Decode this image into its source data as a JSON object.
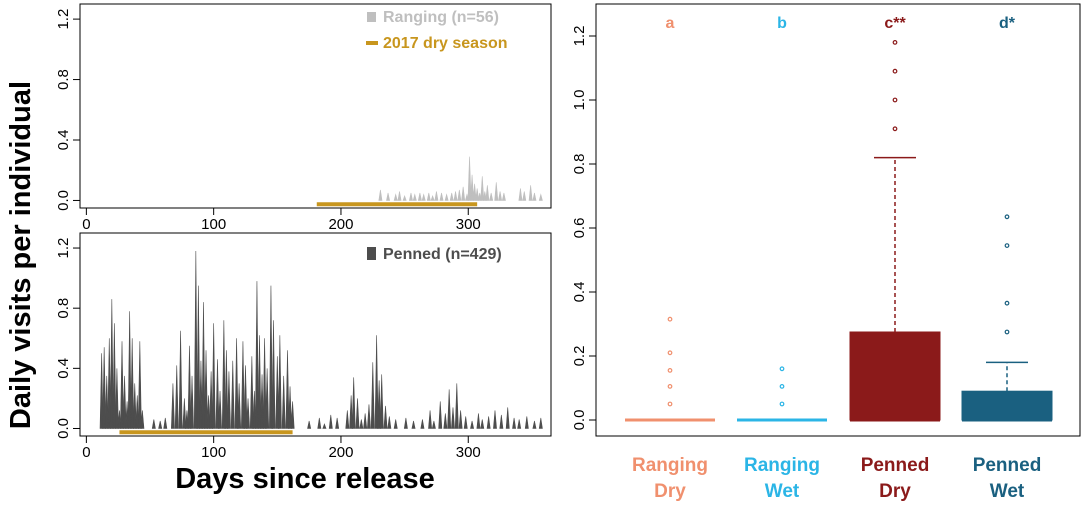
{
  "figure": {
    "shared_ylabel": "Daily visits per individual",
    "shared_xlabel": "Days since release"
  },
  "chart_data": [
    {
      "id": "ranging-timeseries",
      "type": "area",
      "title": "",
      "xlabel": "Days since release",
      "ylabel": "Daily visits per individual",
      "xlim": [
        -5,
        365
      ],
      "ylim": [
        -0.05,
        1.3
      ],
      "xticks": [
        0,
        100,
        200,
        300
      ],
      "yticks": [
        0.0,
        0.4,
        0.8,
        1.2
      ],
      "ytick_labels": [
        "0.0",
        "0.4",
        "0.8",
        "1.2"
      ],
      "series_name": "Ranging (n=56)",
      "color": "#bfbfbf",
      "dry_season": {
        "label": "2017 dry season",
        "start": 181,
        "end": 307,
        "color": "#c8961e"
      },
      "spikes": [
        [
          231,
          0.07
        ],
        [
          237,
          0.05
        ],
        [
          243,
          0.04
        ],
        [
          246,
          0.06
        ],
        [
          250,
          0.03
        ],
        [
          255,
          0.05
        ],
        [
          258,
          0.04
        ],
        [
          262,
          0.05
        ],
        [
          265,
          0.04
        ],
        [
          269,
          0.05
        ],
        [
          272,
          0.03
        ],
        [
          275,
          0.06
        ],
        [
          279,
          0.05
        ],
        [
          283,
          0.04
        ],
        [
          287,
          0.05
        ],
        [
          290,
          0.06
        ],
        [
          293,
          0.07
        ],
        [
          296,
          0.09
        ],
        [
          299,
          0.04
        ],
        [
          301,
          0.29
        ],
        [
          303,
          0.17
        ],
        [
          305,
          0.11
        ],
        [
          307,
          0.08
        ],
        [
          309,
          0.05
        ],
        [
          311,
          0.16
        ],
        [
          313,
          0.06
        ],
        [
          315,
          0.1
        ],
        [
          318,
          0.05
        ],
        [
          322,
          0.12
        ],
        [
          325,
          0.06
        ],
        [
          328,
          0.05
        ],
        [
          341,
          0.08
        ],
        [
          344,
          0.06
        ],
        [
          349,
          0.1
        ],
        [
          352,
          0.05
        ],
        [
          357,
          0.04
        ]
      ]
    },
    {
      "id": "penned-timeseries",
      "type": "area",
      "title": "",
      "xlabel": "Days since release",
      "ylabel": "Daily visits per individual",
      "xlim": [
        -5,
        365
      ],
      "ylim": [
        -0.05,
        1.3
      ],
      "xticks": [
        0,
        100,
        200,
        300
      ],
      "yticks": [
        0.0,
        0.4,
        0.8,
        1.2
      ],
      "ytick_labels": [
        "0.0",
        "0.4",
        "0.8",
        "1.2"
      ],
      "series_name": "Penned (n=429)",
      "color": "#4d4d4d",
      "dry_season": {
        "label": "2017 dry season",
        "start": 26,
        "end": 162,
        "color": "#c8961e"
      },
      "spikes": [
        [
          12,
          0.5
        ],
        [
          14,
          0.54
        ],
        [
          16,
          0.35
        ],
        [
          18,
          0.6
        ],
        [
          20,
          0.86
        ],
        [
          22,
          0.7
        ],
        [
          24,
          0.4
        ],
        [
          26,
          0.12
        ],
        [
          28,
          0.58
        ],
        [
          30,
          0.35
        ],
        [
          32,
          0.18
        ],
        [
          34,
          0.78
        ],
        [
          36,
          0.6
        ],
        [
          38,
          0.3
        ],
        [
          40,
          0.22
        ],
        [
          42,
          0.58
        ],
        [
          44,
          0.12
        ],
        [
          53,
          0.06
        ],
        [
          58,
          0.05
        ],
        [
          62,
          0.07
        ],
        [
          68,
          0.3
        ],
        [
          71,
          0.42
        ],
        [
          74,
          0.65
        ],
        [
          77,
          0.2
        ],
        [
          79,
          0.12
        ],
        [
          81,
          0.55
        ],
        [
          83,
          0.35
        ],
        [
          86,
          1.18
        ],
        [
          88,
          0.95
        ],
        [
          90,
          0.45
        ],
        [
          92,
          0.84
        ],
        [
          94,
          0.52
        ],
        [
          96,
          0.22
        ],
        [
          98,
          0.38
        ],
        [
          100,
          0.7
        ],
        [
          103,
          0.46
        ],
        [
          105,
          0.25
        ],
        [
          108,
          0.72
        ],
        [
          110,
          0.52
        ],
        [
          112,
          0.38
        ],
        [
          115,
          0.45
        ],
        [
          118,
          0.6
        ],
        [
          120,
          0.3
        ],
        [
          123,
          0.58
        ],
        [
          125,
          0.42
        ],
        [
          127,
          0.2
        ],
        [
          130,
          0.48
        ],
        [
          132,
          0.25
        ],
        [
          134,
          0.98
        ],
        [
          136,
          0.62
        ],
        [
          138,
          0.36
        ],
        [
          140,
          0.6
        ],
        [
          142,
          0.4
        ],
        [
          145,
          0.95
        ],
        [
          147,
          0.72
        ],
        [
          150,
          0.48
        ],
        [
          152,
          0.62
        ],
        [
          155,
          0.35
        ],
        [
          158,
          0.52
        ],
        [
          160,
          0.28
        ],
        [
          162,
          0.18
        ],
        [
          175,
          0.05
        ],
        [
          183,
          0.07
        ],
        [
          187,
          0.03
        ],
        [
          192,
          0.09
        ],
        [
          197,
          0.07
        ],
        [
          205,
          0.12
        ],
        [
          208,
          0.22
        ],
        [
          210,
          0.34
        ],
        [
          213,
          0.2
        ],
        [
          216,
          0.06
        ],
        [
          219,
          0.1
        ],
        [
          222,
          0.16
        ],
        [
          225,
          0.44
        ],
        [
          228,
          0.62
        ],
        [
          230,
          0.32
        ],
        [
          232,
          0.36
        ],
        [
          235,
          0.15
        ],
        [
          238,
          0.08
        ],
        [
          243,
          0.06
        ],
        [
          251,
          0.07
        ],
        [
          257,
          0.05
        ],
        [
          264,
          0.06
        ],
        [
          270,
          0.12
        ],
        [
          273,
          0.05
        ],
        [
          278,
          0.18
        ],
        [
          282,
          0.1
        ],
        [
          285,
          0.26
        ],
        [
          288,
          0.14
        ],
        [
          291,
          0.3
        ],
        [
          294,
          0.12
        ],
        [
          298,
          0.08
        ],
        [
          303,
          0.05
        ],
        [
          308,
          0.1
        ],
        [
          311,
          0.06
        ],
        [
          316,
          0.08
        ],
        [
          321,
          0.12
        ],
        [
          326,
          0.09
        ],
        [
          331,
          0.14
        ],
        [
          336,
          0.07
        ],
        [
          340,
          0.06
        ],
        [
          346,
          0.08
        ],
        [
          352,
          0.05
        ],
        [
          357,
          0.07
        ]
      ]
    },
    {
      "id": "boxplot",
      "type": "box",
      "title": "",
      "ylim": [
        -0.05,
        1.3
      ],
      "yticks": [
        0.0,
        0.2,
        0.4,
        0.6,
        0.8,
        1.0,
        1.2
      ],
      "ytick_labels": [
        "0.0",
        "0.2",
        "0.4",
        "0.6",
        "0.8",
        "1.0",
        "1.2"
      ],
      "groups": [
        {
          "label_line1": "Ranging",
          "label_line2": "Dry",
          "letter": "a",
          "color": "#f0906e",
          "q1": 0.0,
          "median": 0.0,
          "q3": 0.0,
          "whisker_low": 0.0,
          "whisker_high": 0.0,
          "outliers": [
            0.05,
            0.105,
            0.155,
            0.21,
            0.315
          ]
        },
        {
          "label_line1": "Ranging",
          "label_line2": "Wet",
          "letter": "b",
          "color": "#2bb5e6",
          "q1": 0.0,
          "median": 0.0,
          "q3": 0.0,
          "whisker_low": 0.0,
          "whisker_high": 0.0,
          "outliers": [
            0.05,
            0.105,
            0.16
          ]
        },
        {
          "label_line1": "Penned",
          "label_line2": "Dry",
          "letter": "c**",
          "color": "#8b1a1a",
          "q1": 0.0,
          "median": 0.0,
          "q3": 0.275,
          "whisker_low": 0.0,
          "whisker_high": 0.82,
          "outliers": [
            0.91,
            1.0,
            1.09,
            1.18
          ]
        },
        {
          "label_line1": "Penned",
          "label_line2": "Wet",
          "letter": "d*",
          "color": "#1a6080",
          "q1": 0.0,
          "median": 0.0,
          "q3": 0.09,
          "whisker_low": 0.0,
          "whisker_high": 0.18,
          "outliers": [
            0.275,
            0.365,
            0.545,
            0.635
          ]
        }
      ]
    }
  ]
}
